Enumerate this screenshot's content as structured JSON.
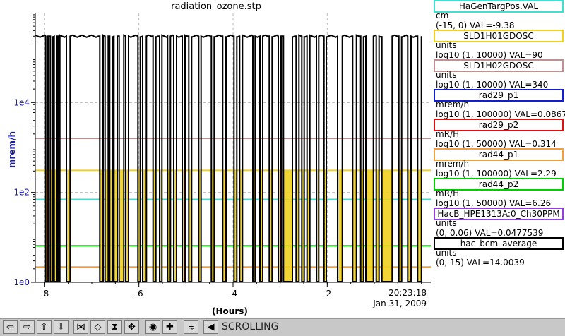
{
  "title": "radiation_ozone.stp",
  "chart_data": {
    "type": "line",
    "title": "radiation_ozone.stp",
    "xlabel": "(Hours)",
    "ylabel": "mrem/h",
    "yscale": "log",
    "xlim": [
      -8.2,
      0.2
    ],
    "ylim": [
      1,
      1000000
    ],
    "y_ticks": [
      {
        "value": 1,
        "label": "1e0"
      },
      {
        "value": 100,
        "label": "1e2"
      },
      {
        "value": 10000,
        "label": "1e4"
      }
    ],
    "x_ticks": [
      {
        "value": -8,
        "label": "-8"
      },
      {
        "value": -6,
        "label": "-6"
      },
      {
        "value": -4,
        "label": "-4"
      },
      {
        "value": -2,
        "label": "-2"
      }
    ],
    "grid": true,
    "legend_placement": "right",
    "series": [
      {
        "name": "HaGenTargPos.VAL",
        "color": "#40e0d0",
        "values_y": [
          70,
          70
        ]
      },
      {
        "name": "SLD1H01GDOSC",
        "color": "#f0d020",
        "values_y": [
          310,
          310
        ]
      },
      {
        "name": "SLD1H02GDOSC",
        "color": "#c09090",
        "values_y": [
          1600,
          1600
        ]
      },
      {
        "name": "rad44_p1",
        "color": "#f0a040",
        "values_y": [
          2.2,
          2.2
        ]
      },
      {
        "name": "rad44_p2",
        "color": "#00d000",
        "values_y": [
          6.5,
          6.5
        ]
      },
      {
        "name": "hac_bcm_average",
        "color": "#000000",
        "high_level": 300000,
        "low_level": 1,
        "dips": [
          [
            -7.98,
            -7.93
          ],
          [
            -7.88,
            -7.83
          ],
          [
            -7.8,
            -7.74
          ],
          [
            -7.72,
            -7.68
          ],
          [
            -7.54,
            -7.46
          ],
          [
            -6.83,
            -6.76
          ],
          [
            -6.72,
            -6.65
          ],
          [
            -6.62,
            -6.56
          ],
          [
            -6.53,
            -6.46
          ],
          [
            -6.42,
            -6.32
          ],
          [
            -6.28,
            -6.22
          ],
          [
            -6.02,
            -5.97
          ],
          [
            -5.92,
            -5.84
          ],
          [
            -5.7,
            -5.64
          ],
          [
            -5.56,
            -5.51
          ],
          [
            -5.39,
            -5.33
          ],
          [
            -5.26,
            -5.2
          ],
          [
            -5.08,
            -5.02
          ],
          [
            -4.94,
            -4.88
          ],
          [
            -4.73,
            -4.68
          ],
          [
            -4.46,
            -4.4
          ],
          [
            -4.22,
            -4.15
          ],
          [
            -3.98,
            -3.92
          ],
          [
            -3.86,
            -3.8
          ],
          [
            -3.58,
            -3.53
          ],
          [
            -3.43,
            -3.37
          ],
          [
            -3.23,
            -3.17
          ],
          [
            -3.04,
            -2.98
          ],
          [
            -2.93,
            -2.74
          ],
          [
            -2.66,
            -2.6
          ],
          [
            -2.54,
            -2.49
          ],
          [
            -2.43,
            -2.37
          ],
          [
            -2.23,
            -2.18
          ],
          [
            -2.07,
            -2.02
          ],
          [
            -1.78,
            -1.68
          ],
          [
            -1.46,
            -1.38
          ],
          [
            -1.29,
            -1.23
          ],
          [
            -1.18,
            -1.02
          ],
          [
            -0.96,
            -0.9
          ],
          [
            -0.84,
            -0.62
          ],
          [
            -0.48,
            -0.42
          ],
          [
            -0.29,
            -0.22
          ],
          [
            -0.08,
            0.0
          ]
        ]
      }
    ],
    "timestamp": {
      "time": "20:23:18",
      "date": "Jan 31, 2009"
    }
  },
  "legend": [
    {
      "name": "HaGenTargPos.VAL",
      "color": "#40e0d0",
      "unit": "cm",
      "range": "(-15, 0) VAL=-9.38"
    },
    {
      "name": "SLD1H01GDOSC",
      "color": "#f0d020",
      "unit": "units",
      "range": "log10 (1, 10000) VAL=90"
    },
    {
      "name": "SLD1H02GDOSC",
      "color": "#c09090",
      "unit": "units",
      "range": "log10 (1, 10000) VAL=340"
    },
    {
      "name": "rad29_p1",
      "color": "#1020d0",
      "unit": "mrem/h",
      "range": "log10 (1, 100000) VAL=0.0867"
    },
    {
      "name": "rad29_p2",
      "color": "#e01010",
      "unit": "mR/H",
      "range": "log10 (1, 50000) VAL=0.314"
    },
    {
      "name": "rad44_p1",
      "color": "#f0a040",
      "unit": "mrem/h",
      "range": "log10 (1, 100000) VAL=2.29"
    },
    {
      "name": "rad44_p2",
      "color": "#00d000",
      "unit": "mR/H",
      "range": "log10 (1, 50000) VAL=6.26"
    },
    {
      "name": "HacB_HPE1313A:0_Ch30PPM",
      "color": "#9040e0",
      "unit": "units",
      "range": "(0, 0.06) VAL=0.0477539"
    },
    {
      "name": "hac_bcm_average",
      "color": "#000000",
      "unit": "units",
      "range": "(0, 15) VAL=14.0039"
    }
  ],
  "toolbar": {
    "buttons": [
      {
        "icon": "arrow-left-icon",
        "glyph": "⇦"
      },
      {
        "icon": "arrow-right-icon",
        "glyph": "⇨"
      },
      {
        "icon": "arrow-up-icon",
        "glyph": "⇧"
      },
      {
        "icon": "arrow-down-icon",
        "glyph": "⇩"
      },
      {
        "icon": "zoom-in-horizontal-icon",
        "glyph": "⋈"
      },
      {
        "icon": "zoom-out-horizontal-icon",
        "glyph": "◇"
      },
      {
        "icon": "zoom-in-vertical-icon",
        "glyph": "⧗"
      },
      {
        "icon": "zoom-out-vertical-icon",
        "glyph": "✥"
      },
      {
        "icon": "config-icon",
        "glyph": "◉"
      },
      {
        "icon": "add-icon",
        "glyph": "✚"
      },
      {
        "icon": "autoscale-icon",
        "glyph": "⩳"
      },
      {
        "icon": "scroll-back-icon",
        "glyph": "◀"
      }
    ],
    "status": "SCROLLING"
  }
}
